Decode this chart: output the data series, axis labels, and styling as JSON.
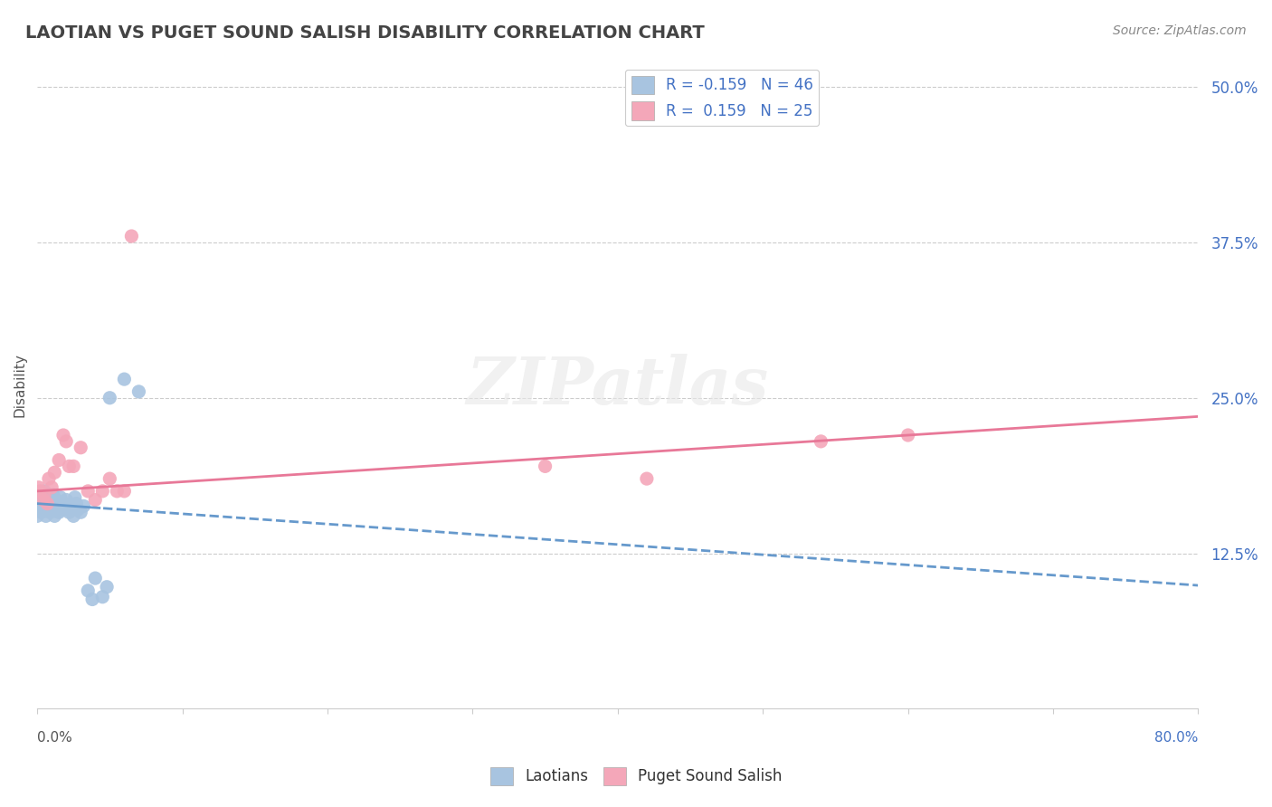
{
  "title": "LAOTIAN VS PUGET SOUND SALISH DISABILITY CORRELATION CHART",
  "source": "Source: ZipAtlas.com",
  "ylabel": "Disability",
  "y_ticks": [
    0.125,
    0.25,
    0.375,
    0.5
  ],
  "y_tick_labels": [
    "12.5%",
    "25.0%",
    "37.5%",
    "50.0%"
  ],
  "legend_blue_label": "R = -0.159   N = 46",
  "legend_pink_label": "R =  0.159   N = 25",
  "blue_color": "#a8c4e0",
  "pink_color": "#f4a7b9",
  "blue_line_color": "#6699cc",
  "pink_line_color": "#e87898",
  "background_color": "#ffffff",
  "xlim": [
    0,
    0.8
  ],
  "ylim": [
    0,
    0.52
  ],
  "blue_solid_cutoff": 0.045,
  "blue_line_start_y": 0.165,
  "blue_line_end_y": 0.128,
  "blue_line_end_x": 0.45,
  "pink_line_start_y": 0.175,
  "pink_line_end_y": 0.235,
  "blue_scatter_x": [
    0.0,
    0.001,
    0.001,
    0.002,
    0.002,
    0.003,
    0.003,
    0.004,
    0.004,
    0.005,
    0.005,
    0.006,
    0.006,
    0.007,
    0.008,
    0.008,
    0.009,
    0.01,
    0.01,
    0.011,
    0.012,
    0.013,
    0.014,
    0.015,
    0.016,
    0.017,
    0.018,
    0.019,
    0.02,
    0.021,
    0.022,
    0.023,
    0.025,
    0.026,
    0.027,
    0.028,
    0.03,
    0.032,
    0.035,
    0.038,
    0.04,
    0.045,
    0.048,
    0.05,
    0.06,
    0.07
  ],
  "blue_scatter_y": [
    0.155,
    0.16,
    0.165,
    0.162,
    0.168,
    0.158,
    0.172,
    0.163,
    0.17,
    0.16,
    0.175,
    0.155,
    0.168,
    0.165,
    0.163,
    0.17,
    0.158,
    0.16,
    0.165,
    0.172,
    0.155,
    0.168,
    0.163,
    0.158,
    0.17,
    0.16,
    0.163,
    0.165,
    0.168,
    0.16,
    0.158,
    0.163,
    0.155,
    0.17,
    0.165,
    0.16,
    0.158,
    0.163,
    0.095,
    0.088,
    0.105,
    0.09,
    0.098,
    0.25,
    0.265,
    0.255
  ],
  "pink_scatter_x": [
    0.001,
    0.002,
    0.004,
    0.005,
    0.007,
    0.008,
    0.01,
    0.012,
    0.015,
    0.018,
    0.02,
    0.022,
    0.025,
    0.03,
    0.035,
    0.04,
    0.045,
    0.05,
    0.055,
    0.06,
    0.065,
    0.35,
    0.42,
    0.54,
    0.6
  ],
  "pink_scatter_y": [
    0.178,
    0.175,
    0.168,
    0.172,
    0.165,
    0.185,
    0.178,
    0.19,
    0.2,
    0.22,
    0.215,
    0.195,
    0.195,
    0.21,
    0.175,
    0.168,
    0.175,
    0.185,
    0.175,
    0.175,
    0.38,
    0.195,
    0.185,
    0.215,
    0.22
  ]
}
